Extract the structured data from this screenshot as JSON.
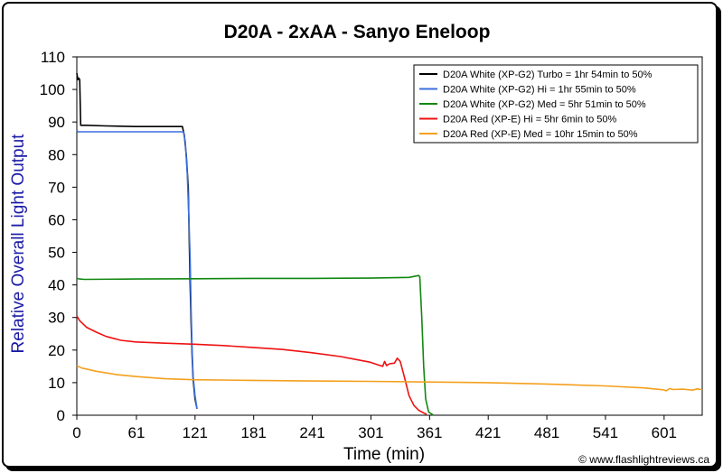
{
  "chart_data": {
    "type": "line",
    "title": "D20A - 2xAA - Sanyo Eneloop",
    "xlabel": "Time (min)",
    "ylabel": "Relative Overall Light Output",
    "xlim": [
      0,
      640
    ],
    "ylim": [
      0,
      110
    ],
    "x_ticks": [
      0,
      61,
      121,
      181,
      241,
      301,
      361,
      421,
      481,
      541,
      601
    ],
    "y_ticks": [
      0,
      10,
      20,
      30,
      40,
      50,
      60,
      70,
      80,
      90,
      100,
      110
    ],
    "grid": false,
    "legend_position": "top-right",
    "credit": "© www.flashlightreviews.ca",
    "series": [
      {
        "name": "D20A White (XP-G2) Turbo = 1hr 54min to 50%",
        "color": "#000000",
        "points": [
          [
            0,
            105
          ],
          [
            1,
            103
          ],
          [
            2,
            103.5
          ],
          [
            3,
            103
          ],
          [
            4,
            89
          ],
          [
            10,
            89
          ],
          [
            30,
            88.8
          ],
          [
            60,
            88.6
          ],
          [
            90,
            88.6
          ],
          [
            108,
            88.6
          ],
          [
            110,
            86
          ],
          [
            112,
            80
          ],
          [
            114,
            70
          ],
          [
            115,
            55
          ],
          [
            116,
            40
          ],
          [
            117,
            28
          ],
          [
            118,
            18
          ],
          [
            119,
            11
          ],
          [
            121,
            5
          ],
          [
            123,
            2
          ]
        ]
      },
      {
        "name": "D20A White (XP-G2) Hi = 1hr 55min to 50%",
        "color": "#3a6fdd",
        "points": [
          [
            0,
            87.5
          ],
          [
            1,
            87
          ],
          [
            30,
            87
          ],
          [
            60,
            87
          ],
          [
            90,
            87
          ],
          [
            109,
            87
          ],
          [
            111,
            84
          ],
          [
            113,
            74
          ],
          [
            115,
            58
          ],
          [
            116,
            48
          ],
          [
            117,
            32
          ],
          [
            118,
            20
          ],
          [
            119,
            12
          ],
          [
            121,
            6
          ],
          [
            123,
            2
          ]
        ]
      },
      {
        "name": "D20A White (XP-G2) Med = 5hr 51min to 50%",
        "color": "#118811",
        "points": [
          [
            0,
            42
          ],
          [
            3,
            41.8
          ],
          [
            8,
            41.7
          ],
          [
            60,
            41.8
          ],
          [
            120,
            41.9
          ],
          [
            180,
            42
          ],
          [
            240,
            42
          ],
          [
            300,
            42.1
          ],
          [
            340,
            42.3
          ],
          [
            350,
            42.9
          ],
          [
            351,
            42.5
          ],
          [
            353,
            30
          ],
          [
            355,
            15
          ],
          [
            357,
            5
          ],
          [
            360,
            1
          ],
          [
            365,
            0
          ]
        ]
      },
      {
        "name": "D20A Red (XP-E) Hi = 5hr 6min to 50%",
        "color": "#ee1111",
        "points": [
          [
            0,
            30.5
          ],
          [
            3,
            29
          ],
          [
            10,
            27
          ],
          [
            20,
            25.5
          ],
          [
            30,
            24.2
          ],
          [
            45,
            23
          ],
          [
            60,
            22.5
          ],
          [
            90,
            22.1
          ],
          [
            120,
            21.8
          ],
          [
            150,
            21.4
          ],
          [
            180,
            20.8
          ],
          [
            210,
            20.2
          ],
          [
            240,
            19.2
          ],
          [
            270,
            18
          ],
          [
            300,
            16.3
          ],
          [
            313,
            15
          ],
          [
            315,
            16.5
          ],
          [
            317,
            15.2
          ],
          [
            320,
            15.8
          ],
          [
            325,
            16
          ],
          [
            328,
            17.5
          ],
          [
            331,
            16.5
          ],
          [
            335,
            12
          ],
          [
            340,
            6
          ],
          [
            345,
            3
          ],
          [
            350,
            1.5
          ],
          [
            355,
            0.7
          ],
          [
            358,
            0.3
          ]
        ]
      },
      {
        "name": "D20A Red (XP-E) Med = 10hr 15min to 50%",
        "color": "#f4a01e",
        "points": [
          [
            0,
            15.2
          ],
          [
            5,
            14.5
          ],
          [
            20,
            13.5
          ],
          [
            40,
            12.5
          ],
          [
            60,
            11.9
          ],
          [
            90,
            11.2
          ],
          [
            120,
            10.9
          ],
          [
            180,
            10.7
          ],
          [
            240,
            10.5
          ],
          [
            300,
            10.4
          ],
          [
            360,
            10.2
          ],
          [
            420,
            10
          ],
          [
            480,
            9.6
          ],
          [
            540,
            9
          ],
          [
            580,
            8.4
          ],
          [
            600,
            7.8
          ],
          [
            603,
            7.5
          ],
          [
            607,
            8.2
          ],
          [
            610,
            7.9
          ],
          [
            620,
            8
          ],
          [
            630,
            7.7
          ],
          [
            635,
            8.1
          ],
          [
            640,
            7.8
          ]
        ]
      }
    ]
  }
}
